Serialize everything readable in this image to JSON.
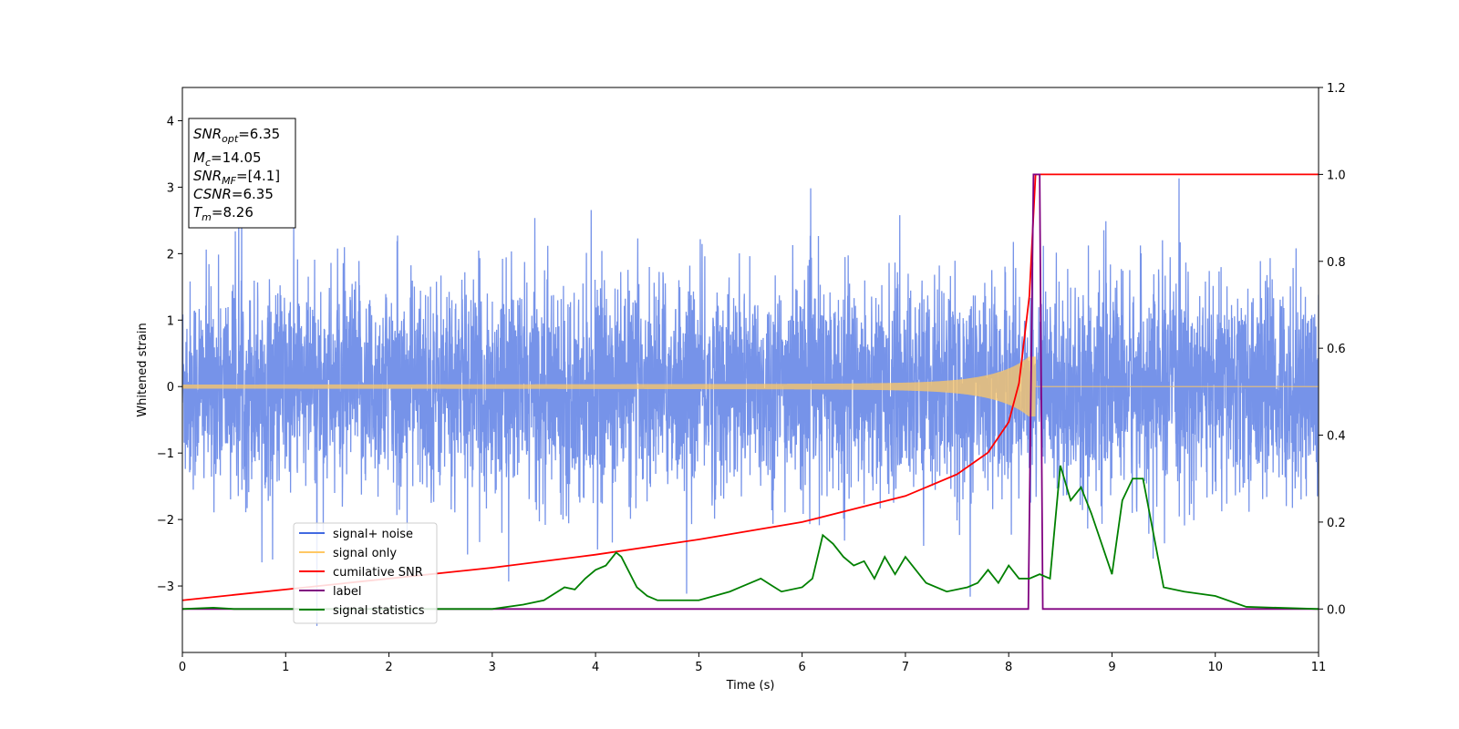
{
  "chart_data": {
    "type": "line",
    "xlabel": "Time (s)",
    "ylabel": "Whitened strain",
    "xlim": [
      0,
      11
    ],
    "ylim_left": [
      -4,
      4.5
    ],
    "ylim_right": [
      -0.1,
      1.2
    ],
    "xticks": [
      "0",
      "1",
      "2",
      "3",
      "4",
      "5",
      "6",
      "7",
      "8",
      "9",
      "10",
      "11"
    ],
    "yticks_left": [
      "−3",
      "−2",
      "−1",
      "0",
      "1",
      "2",
      "3",
      "4"
    ],
    "yticks_right": [
      "0.0",
      "0.2",
      "0.4",
      "0.6",
      "0.8",
      "1.0",
      "1.2"
    ],
    "colors": {
      "signal_noise": "#4169e1",
      "signal_only": "#ffc864",
      "cumulative_snr": "#ff0000",
      "label": "#800080",
      "signal_statistics": "#008000"
    },
    "info_box": {
      "snr_opt": {
        "base": "SNR",
        "sub": "opt",
        "value": "=6.35"
      },
      "mc": {
        "base": "M",
        "sub": "c",
        "value": "=14.05"
      },
      "snr_mf": {
        "base": "SNR",
        "sub": "MF",
        "value": "=[4.1]"
      },
      "csnr": {
        "base": "CSNR",
        "value": "=6.35"
      },
      "tm": {
        "base": "T",
        "sub": "m",
        "value": "=8.26"
      }
    },
    "legend": {
      "placement": "lower-left",
      "entries": [
        "signal+ noise",
        "signal only",
        "cumilative SNR",
        "label",
        "signal statistics"
      ]
    },
    "series": [
      {
        "name": "signal+ noise",
        "axis": "left",
        "kind": "noise",
        "amplitude_approx": 3.6
      },
      {
        "name": "signal only",
        "axis": "left",
        "kind": "chirp",
        "peak_time": 8.26,
        "peak_amplitude": 0.45
      },
      {
        "name": "cumilative SNR",
        "axis": "right",
        "x": [
          0,
          1,
          2,
          3,
          4,
          5,
          6,
          7,
          7.5,
          7.8,
          8.0,
          8.1,
          8.2,
          8.26,
          11
        ],
        "y": [
          0.02,
          0.045,
          0.07,
          0.095,
          0.125,
          0.16,
          0.2,
          0.26,
          0.31,
          0.36,
          0.43,
          0.52,
          0.72,
          1.0,
          1.0
        ]
      },
      {
        "name": "label",
        "axis": "right",
        "x": [
          0,
          8.19,
          8.24,
          8.3,
          8.33,
          11
        ],
        "y": [
          0,
          0,
          1.0,
          1.0,
          0,
          0
        ]
      },
      {
        "name": "signal statistics",
        "axis": "right",
        "x": [
          0,
          0.3,
          0.5,
          1.0,
          2.0,
          3.0,
          3.3,
          3.5,
          3.7,
          3.8,
          3.9,
          4.0,
          4.1,
          4.2,
          4.25,
          4.4,
          4.5,
          4.6,
          5.0,
          5.3,
          5.4,
          5.5,
          5.6,
          5.7,
          5.8,
          6.0,
          6.1,
          6.2,
          6.3,
          6.4,
          6.5,
          6.6,
          6.7,
          6.8,
          6.9,
          7.0,
          7.2,
          7.4,
          7.6,
          7.7,
          7.8,
          7.9,
          8.0,
          8.1,
          8.2,
          8.3,
          8.4,
          8.5,
          8.6,
          8.7,
          8.8,
          9.0,
          9.1,
          9.2,
          9.3,
          9.5,
          9.7,
          10.0,
          10.3,
          11
        ],
        "y": [
          0,
          0.003,
          0.0,
          0.0,
          0.0,
          0.0,
          0.01,
          0.02,
          0.05,
          0.045,
          0.07,
          0.09,
          0.1,
          0.13,
          0.12,
          0.05,
          0.03,
          0.02,
          0.02,
          0.04,
          0.05,
          0.06,
          0.07,
          0.055,
          0.04,
          0.05,
          0.07,
          0.17,
          0.15,
          0.12,
          0.1,
          0.11,
          0.07,
          0.12,
          0.08,
          0.12,
          0.06,
          0.04,
          0.05,
          0.06,
          0.09,
          0.06,
          0.1,
          0.07,
          0.07,
          0.08,
          0.07,
          0.33,
          0.25,
          0.28,
          0.22,
          0.08,
          0.25,
          0.3,
          0.3,
          0.05,
          0.04,
          0.03,
          0.005,
          0.0
        ]
      }
    ]
  }
}
